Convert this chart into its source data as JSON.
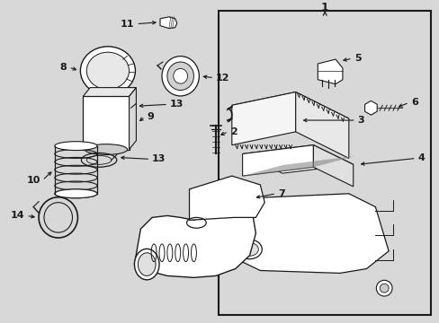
{
  "bg_color": "#d8d8d8",
  "box_bg": "#d8d8d8",
  "white": "#ffffff",
  "lc": "#1a1a1a",
  "fig_width": 4.89,
  "fig_height": 3.6,
  "dpi": 100
}
